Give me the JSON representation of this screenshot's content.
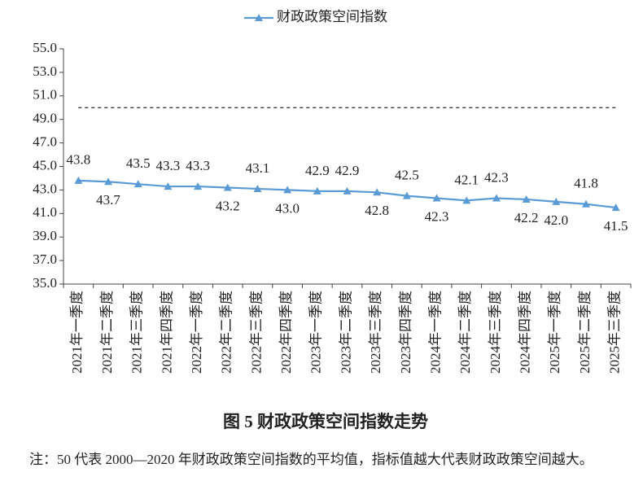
{
  "chart_data": {
    "type": "line",
    "title": "图 5  财政政策空间指数走势",
    "note": "注：50 代表 2000—2020 年财政政策空间指数的平均值，指标值越大代表财政政策空间越大。",
    "categories": [
      "2021年一季度",
      "2021年二季度",
      "2021年三季度",
      "2021年四季度",
      "2022年一季度",
      "2022年二季度",
      "2022年三季度",
      "2022年四季度",
      "2023年一季度",
      "2023年二季度",
      "2023年三季度",
      "2023年四季度",
      "2024年一季度",
      "2024年二季度",
      "2024年三季度",
      "2024年四季度",
      "2025年一季度",
      "2025年二季度",
      "2025年三季度"
    ],
    "series": [
      {
        "name": "财政政策空间指数",
        "color": "#5b9bd5",
        "values": [
          43.8,
          43.7,
          43.5,
          43.3,
          43.3,
          43.2,
          43.1,
          43.0,
          42.9,
          42.9,
          42.8,
          42.5,
          42.3,
          42.1,
          42.3,
          42.2,
          42.0,
          41.8,
          41.5
        ],
        "value_labels": [
          "43.8",
          "43.7",
          "43.5",
          "43.3",
          "43.3",
          "43.2",
          "43.1",
          "43.0",
          "42.9",
          "42.9",
          "42.8",
          "42.5",
          "42.3",
          "42.1",
          "42.3",
          "42.2",
          "42.0",
          "41.8",
          "41.5"
        ]
      }
    ],
    "reference_line": 50,
    "ylim": [
      35,
      55
    ],
    "yticks": [
      {
        "value": 35,
        "label": "35.0"
      },
      {
        "value": 37,
        "label": "37.0"
      },
      {
        "value": 39,
        "label": "39.0"
      },
      {
        "value": 41,
        "label": "41.0"
      },
      {
        "value": 43,
        "label": "43.0"
      },
      {
        "value": 45,
        "label": "45.0"
      },
      {
        "value": 47,
        "label": "47.0"
      },
      {
        "value": 49,
        "label": "49.0"
      },
      {
        "value": 51,
        "label": "51.0"
      },
      {
        "value": 53,
        "label": "53.0"
      },
      {
        "value": 55,
        "label": "55.0"
      }
    ]
  }
}
